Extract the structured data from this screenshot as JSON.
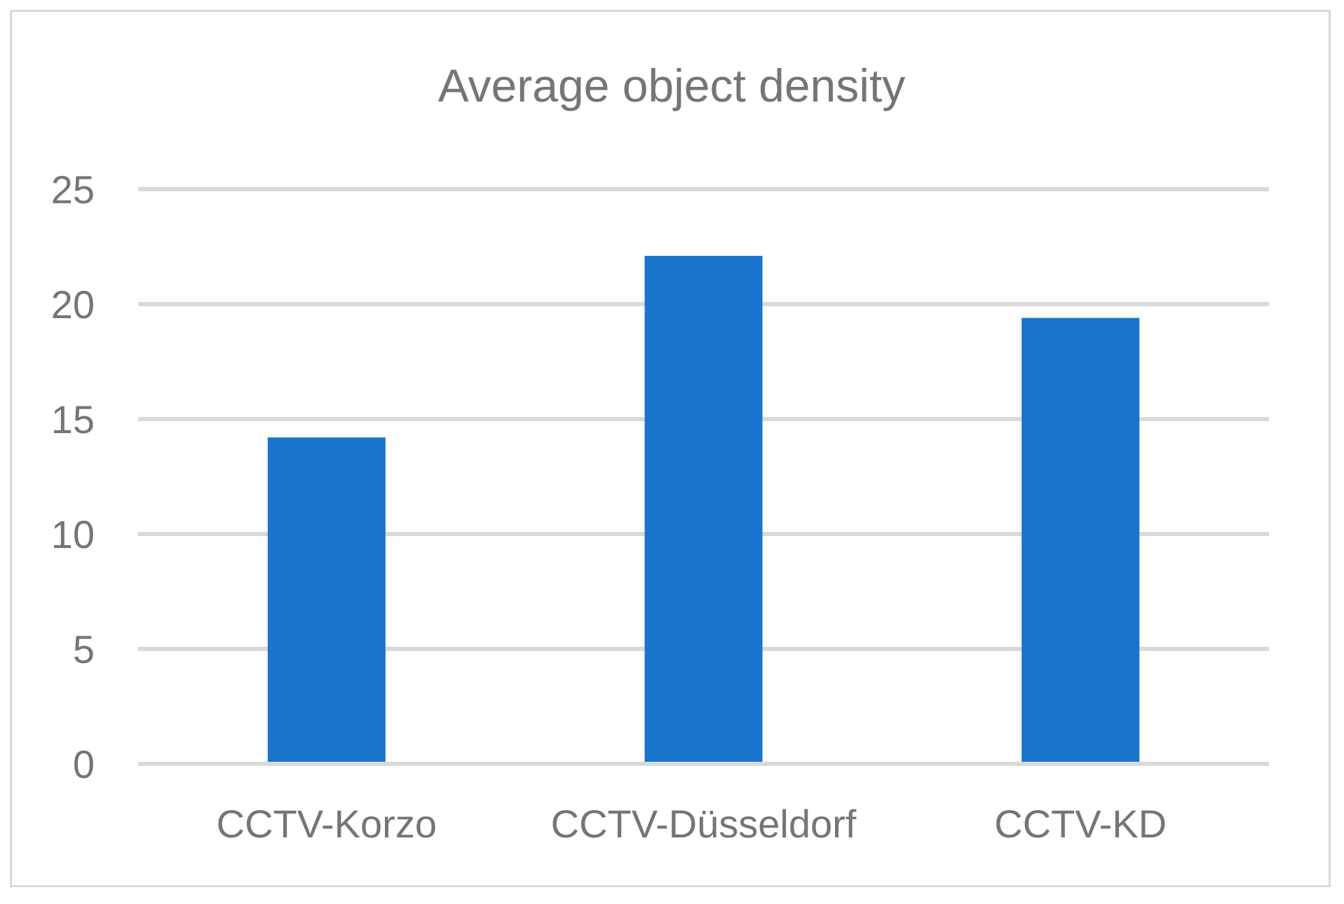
{
  "chart_data": {
    "type": "bar",
    "title": "Average object density",
    "categories": [
      "CCTV-Korzo",
      "CCTV-Düsseldorf",
      "CCTV-KD"
    ],
    "series": [
      {
        "values": [
          14.2,
          22.1,
          19.4
        ],
        "color": "#1874cd"
      }
    ],
    "y_ticks": [
      "0",
      "5",
      "10",
      "15",
      "20",
      "25"
    ],
    "ylim": [
      0,
      25
    ],
    "grid": true,
    "legend": "none",
    "xlabel": "",
    "ylabel": ""
  }
}
